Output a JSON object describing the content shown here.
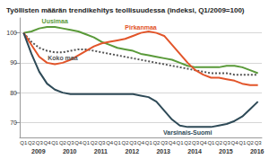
{
  "chart_data": {
    "type": "line",
    "title": "Työllisten määrän trendikehitys teollisuudessa (indeksi, Q1/2009=100)",
    "categories": [
      "Q1",
      "Q2",
      "Q3",
      "Q4",
      "Q1",
      "Q2",
      "Q3",
      "Q4",
      "Q1",
      "Q2",
      "Q3",
      "Q4",
      "Q1",
      "Q2",
      "Q3",
      "Q4",
      "Q1",
      "Q2",
      "Q3",
      "Q4",
      "Q1",
      "Q2",
      "Q3",
      "Q4",
      "Q1",
      "Q2",
      "Q3",
      "Q4",
      "Q1",
      "Q2",
      "Q3"
    ],
    "years": [
      "2009",
      "2010",
      "2011",
      "2012",
      "2013",
      "2014",
      "2015",
      "2016"
    ],
    "series": [
      {
        "name": "Uusimaa",
        "color": "#5a9a3a",
        "line_style": "solid",
        "values": [
          100,
          100.5,
          101.5,
          102,
          102,
          101.5,
          101,
          100.5,
          99.5,
          98.5,
          97,
          96,
          95,
          94.5,
          94,
          93,
          92.5,
          92,
          91.5,
          91,
          90,
          89,
          88.5,
          88.5,
          88.5,
          88.5,
          89,
          89,
          88.5,
          87.5,
          86.5
        ]
      },
      {
        "name": "Koko maa",
        "color": "#555555",
        "line_style": "dotted",
        "values": [
          100,
          97,
          95,
          94,
          93.5,
          93.5,
          94,
          94.5,
          94.5,
          94,
          93.5,
          93,
          92.5,
          92,
          91.5,
          91,
          90.5,
          90,
          89.5,
          89,
          88.5,
          88,
          87.5,
          87,
          86.5,
          86.5,
          86.5,
          86,
          86,
          86,
          86
        ]
      },
      {
        "name": "Pirkanmaa",
        "color": "#e2552a",
        "line_style": "solid",
        "values": [
          100,
          96,
          92,
          90,
          89.5,
          90,
          91,
          92.5,
          94,
          95.5,
          96.5,
          97,
          97.5,
          98,
          99,
          100,
          100.5,
          100,
          99,
          96,
          93,
          90,
          87.5,
          86,
          85,
          85,
          84.5,
          84,
          83,
          82.5,
          82.5
        ]
      },
      {
        "name": "Varsinais-Suomi",
        "color": "#2e4a57",
        "line_style": "solid",
        "values": [
          100,
          93,
          87,
          83,
          81,
          80,
          79.5,
          79.5,
          79.5,
          79.5,
          79.5,
          79.5,
          79.5,
          79.5,
          79.5,
          79,
          78.5,
          77,
          74,
          71,
          69,
          68.5,
          68.5,
          68.5,
          68.5,
          69,
          69.5,
          70.5,
          72,
          74.5,
          77
        ]
      }
    ],
    "ylim": [
      65,
      105
    ],
    "yticks": [
      70,
      80,
      90,
      100
    ],
    "grid": true
  }
}
